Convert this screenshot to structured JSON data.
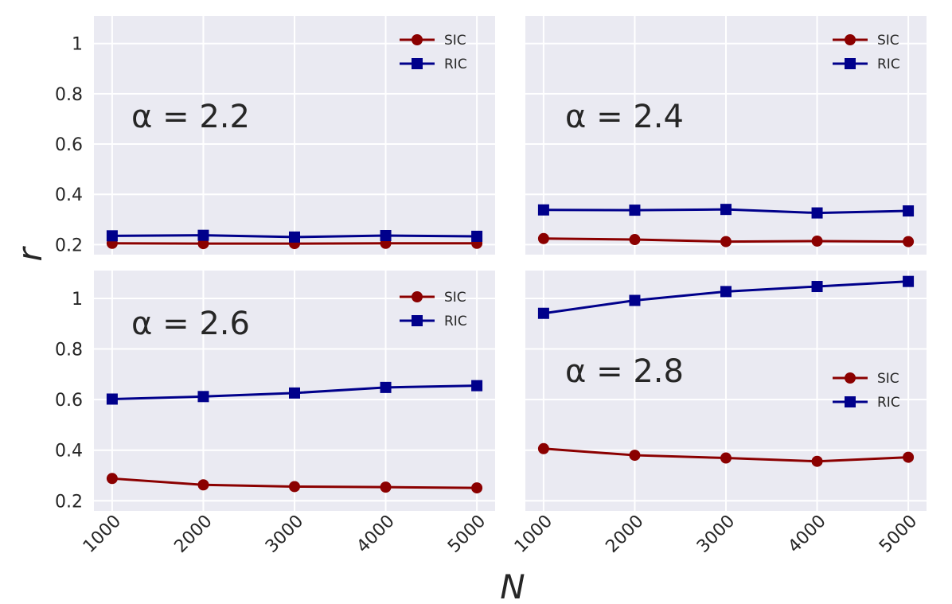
{
  "chart_data": [
    {
      "type": "line",
      "annotation": "α = 2.2",
      "x": [
        1000,
        2000,
        3000,
        4000,
        5000
      ],
      "ylim": [
        0.16,
        1.11
      ],
      "grid": true,
      "legend_position": "top-right",
      "series": [
        {
          "name": "SIC",
          "color": "#8b0000",
          "marker": "circle",
          "values": [
            0.205,
            0.204,
            0.204,
            0.205,
            0.205
          ]
        },
        {
          "name": "RIC",
          "color": "#00008b",
          "marker": "square",
          "values": [
            0.235,
            0.237,
            0.23,
            0.236,
            0.233
          ]
        }
      ]
    },
    {
      "type": "line",
      "annotation": "α = 2.4",
      "x": [
        1000,
        2000,
        3000,
        4000,
        5000
      ],
      "ylim": [
        0.16,
        1.11
      ],
      "grid": true,
      "legend_position": "top-right",
      "series": [
        {
          "name": "SIC",
          "color": "#8b0000",
          "marker": "circle",
          "values": [
            0.224,
            0.22,
            0.212,
            0.214,
            0.212
          ]
        },
        {
          "name": "RIC",
          "color": "#00008b",
          "marker": "square",
          "values": [
            0.338,
            0.337,
            0.34,
            0.326,
            0.334
          ]
        }
      ]
    },
    {
      "type": "line",
      "annotation": "α = 2.6",
      "x": [
        1000,
        2000,
        3000,
        4000,
        5000
      ],
      "ylim": [
        0.16,
        1.11
      ],
      "grid": true,
      "legend_position": "top-right",
      "series": [
        {
          "name": "SIC",
          "color": "#8b0000",
          "marker": "circle",
          "values": [
            0.288,
            0.263,
            0.256,
            0.254,
            0.251
          ]
        },
        {
          "name": "RIC",
          "color": "#00008b",
          "marker": "square",
          "values": [
            0.602,
            0.612,
            0.626,
            0.648,
            0.655
          ]
        }
      ]
    },
    {
      "type": "line",
      "annotation": "α = 2.8",
      "x": [
        1000,
        2000,
        3000,
        4000,
        5000
      ],
      "ylim": [
        0.16,
        1.11
      ],
      "grid": true,
      "legend_position": "center-right",
      "series": [
        {
          "name": "SIC",
          "color": "#8b0000",
          "marker": "circle",
          "values": [
            0.406,
            0.38,
            0.369,
            0.356,
            0.372
          ]
        },
        {
          "name": "RIC",
          "color": "#00008b",
          "marker": "square",
          "values": [
            0.941,
            0.992,
            1.027,
            1.047,
            1.067
          ]
        }
      ]
    }
  ],
  "axes": {
    "xlabel": "N",
    "ylabel": "r",
    "x_ticks": [
      "1000",
      "2000",
      "3000",
      "4000",
      "5000"
    ],
    "y_ticks": [
      "0.2",
      "0.4",
      "0.6",
      "0.8",
      "1"
    ],
    "y_tick_values": [
      0.2,
      0.4,
      0.6,
      0.8,
      1.0
    ]
  }
}
